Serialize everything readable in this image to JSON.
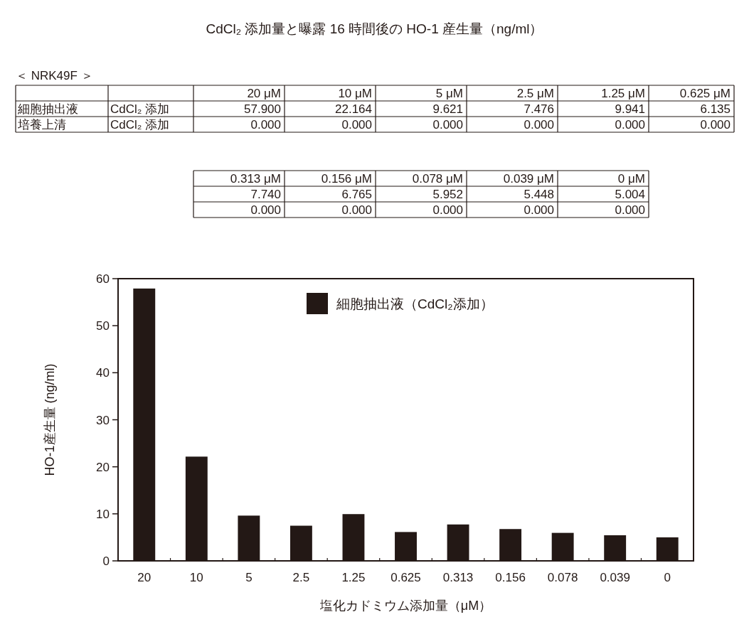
{
  "chart_data": {
    "type": "bar",
    "title": "CdCl₂ 添加量と曝露 16 時間後の HO-1 産生量（ng/ml）",
    "categories": [
      "20",
      "10",
      "5",
      "2.5",
      "1.25",
      "0.625",
      "0.313",
      "0.156",
      "0.078",
      "0.039",
      "0"
    ],
    "series": [
      {
        "name": "細胞抽出液（CdCl₂添加）",
        "color": "#231815",
        "values": [
          57.9,
          22.164,
          9.621,
          7.476,
          9.941,
          6.135,
          7.74,
          6.765,
          5.952,
          5.448,
          5.004
        ]
      }
    ],
    "ylim": [
      0,
      60
    ],
    "yticks": [
      0,
      10,
      20,
      30,
      40,
      50,
      60
    ],
    "xlabel": "塩化カドミウム添加量（μM）",
    "ylabel": "HO-1産生量 (ng/ml)",
    "legend": "top",
    "annotations": [
      "＜ NRK49F ＞",
      "20 μM",
      "10 μM",
      "5 μM",
      "2.5 μM",
      "1.25 μM",
      "0.625 μM",
      "細胞抽出液",
      "CdCl₂ 添加",
      "57.900",
      "22.164",
      "9.621",
      "7.476",
      "9.941",
      "6.135",
      "培養上清",
      "CdCl₂ 添加",
      "0.000",
      "0.000",
      "0.000",
      "0.000",
      "0.000",
      "0.000",
      "0.313 μM",
      "0.156 μM",
      "0.078 μM",
      "0.039 μM",
      "0 μM",
      "7.740",
      "6.765",
      "5.952",
      "5.448",
      "5.004",
      "0.000",
      "0.000",
      "0.000",
      "0.000",
      "0.000"
    ]
  }
}
